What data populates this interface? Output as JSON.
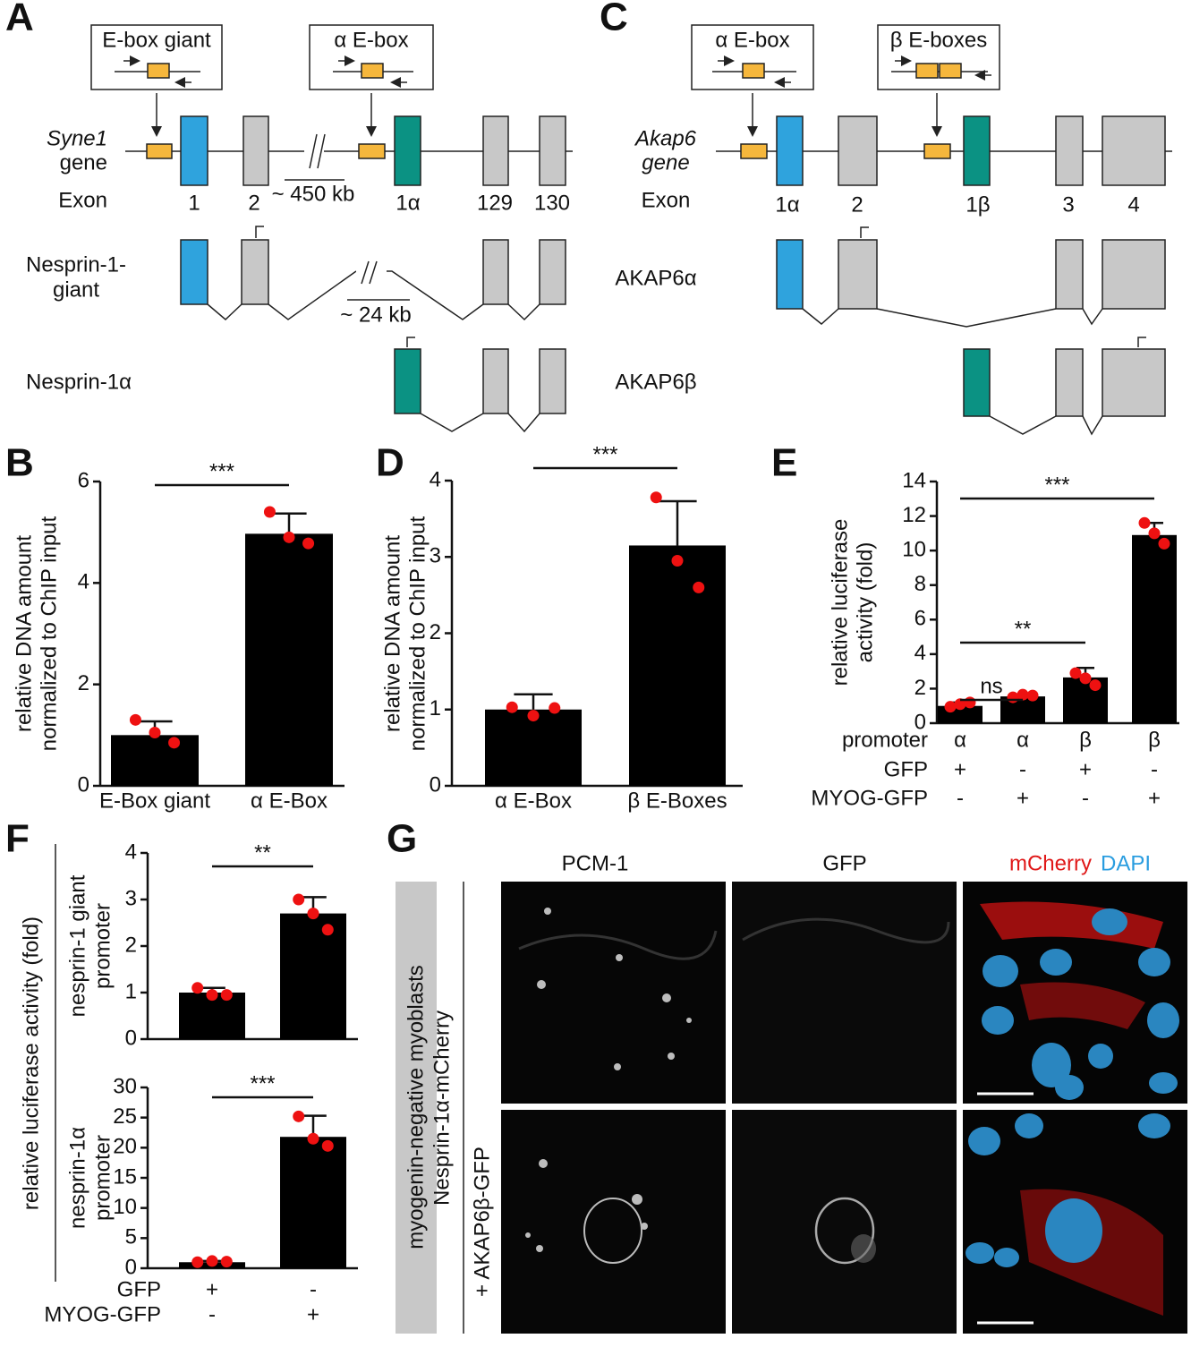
{
  "panel_labels": [
    "A",
    "B",
    "C",
    "D",
    "E",
    "F",
    "G"
  ],
  "diagram_a": {
    "boxes": [
      "E-box giant",
      "α E-box"
    ],
    "gene_name": "Syne1",
    "gene_word": "gene",
    "exon_label": "Exon",
    "exons": [
      "1",
      "2",
      "1α",
      "129",
      "130"
    ],
    "gene_scale": "~ 450 kb",
    "isoforms": [
      {
        "name": [
          "Nesprin-1-",
          "giant"
        ],
        "scale": "~ 24 kb"
      },
      {
        "name": [
          "Nesprin-1α"
        ]
      }
    ]
  },
  "diagram_c": {
    "boxes": [
      "α E-box",
      "β E-boxes"
    ],
    "gene_name": "Akap6",
    "gene_word": "gene",
    "exon_label": "Exon",
    "exons": [
      "1α",
      "2",
      "1β",
      "3",
      "4"
    ],
    "isoforms": [
      "AKAP6α",
      "AKAP6β"
    ]
  },
  "chart_data": [
    {
      "type": "bar",
      "ylabel": [
        "relative DNA amount",
        "normalized to ChIP input"
      ],
      "categories": [
        "E-Box giant",
        "α E-Box"
      ],
      "values": [
        1.0,
        4.97
      ],
      "errors": [
        0.27,
        0.4
      ],
      "points": [
        [
          1.3,
          1.05,
          0.85
        ],
        [
          5.4,
          4.9,
          4.78
        ]
      ],
      "color": "#000000",
      "point_color": "#ee1111",
      "ylim": [
        0,
        6
      ],
      "yticks": [
        0,
        2,
        4,
        6
      ],
      "significance": [
        {
          "from": 0,
          "to": 1,
          "label": "***"
        }
      ]
    },
    {
      "type": "bar",
      "ylabel": [
        "relative DNA amount",
        "normalized to ChIP input"
      ],
      "categories": [
        "α E-Box",
        "β E-Boxes"
      ],
      "values": [
        1.0,
        3.15
      ],
      "errors": [
        0.2,
        0.58
      ],
      "points": [
        [
          1.03,
          0.92,
          1.02
        ],
        [
          3.78,
          2.95,
          2.6
        ]
      ],
      "color": "#000000",
      "point_color": "#ee1111",
      "ylim": [
        0,
        4
      ],
      "yticks": [
        0,
        1,
        2,
        3,
        4
      ],
      "significance": [
        {
          "from": 0,
          "to": 1,
          "label": "***"
        }
      ]
    },
    {
      "type": "bar",
      "ylabel": [
        "relative luciferase",
        "activity (fold)"
      ],
      "categories": [
        "α",
        "α",
        "β",
        "β"
      ],
      "row_labels": [
        "promoter",
        "GFP",
        "MYOG-GFP"
      ],
      "conditions": [
        [
          "+",
          "-",
          "+",
          "-"
        ],
        [
          "-",
          "+",
          "-",
          "+"
        ]
      ],
      "values": [
        1.0,
        1.55,
        2.65,
        10.9
      ],
      "errors": [
        0.2,
        0.12,
        0.55,
        0.7
      ],
      "points": [
        [
          0.95,
          1.1,
          1.2
        ],
        [
          1.5,
          1.65,
          1.6
        ],
        [
          2.9,
          2.6,
          2.2
        ],
        [
          11.6,
          11.0,
          10.4
        ]
      ],
      "color": "#000000",
      "point_color": "#ee1111",
      "ylim": [
        0,
        14
      ],
      "yticks": [
        0,
        2,
        4,
        6,
        8,
        10,
        12,
        14
      ],
      "significance": [
        {
          "from": 0,
          "to": 3,
          "label": "***"
        },
        {
          "from": 0,
          "to": 2,
          "label": "**"
        },
        {
          "from": 0,
          "to": 1,
          "label": "ns"
        }
      ]
    },
    {
      "type": "bar",
      "ylabel": [
        "nesprin-1 giant",
        "promoter"
      ],
      "values": [
        1.0,
        2.7
      ],
      "errors": [
        0.1,
        0.35
      ],
      "points": [
        [
          1.1,
          0.95,
          0.95
        ],
        [
          3.0,
          2.7,
          2.35
        ]
      ],
      "color": "#000000",
      "point_color": "#ee1111",
      "ylim": [
        0,
        4
      ],
      "yticks": [
        0,
        1,
        2,
        3,
        4
      ],
      "significance": [
        {
          "from": 0,
          "to": 1,
          "label": "**"
        }
      ]
    },
    {
      "type": "bar",
      "ylabel": [
        "nesprin-1α",
        "promoter"
      ],
      "values": [
        1.0,
        21.8
      ],
      "errors": [
        0.2,
        3.5
      ],
      "points": [
        [
          1.0,
          1.2,
          1.1
        ],
        [
          25.2,
          21.5,
          20.3
        ]
      ],
      "color": "#000000",
      "point_color": "#ee1111",
      "ylim": [
        0,
        30
      ],
      "yticks": [
        0,
        5,
        10,
        15,
        20,
        25,
        30
      ],
      "significance": [
        {
          "from": 0,
          "to": 1,
          "label": "***"
        }
      ]
    }
  ],
  "panel_f": {
    "ylabel": "relative luciferase activity (fold)",
    "row_labels": [
      "GFP",
      "MYOG-GFP"
    ],
    "conditions": [
      [
        "+",
        "-"
      ],
      [
        "-",
        "+"
      ]
    ]
  },
  "panel_g": {
    "columns": [
      "PCM-1",
      "GFP"
    ],
    "merge": [
      "mCherry",
      "DAPI"
    ],
    "group": "myogenin-negative myoblasts",
    "rows": [
      "Nesprin-1α-mCherry",
      "+ AKAP6β-GFP"
    ]
  }
}
